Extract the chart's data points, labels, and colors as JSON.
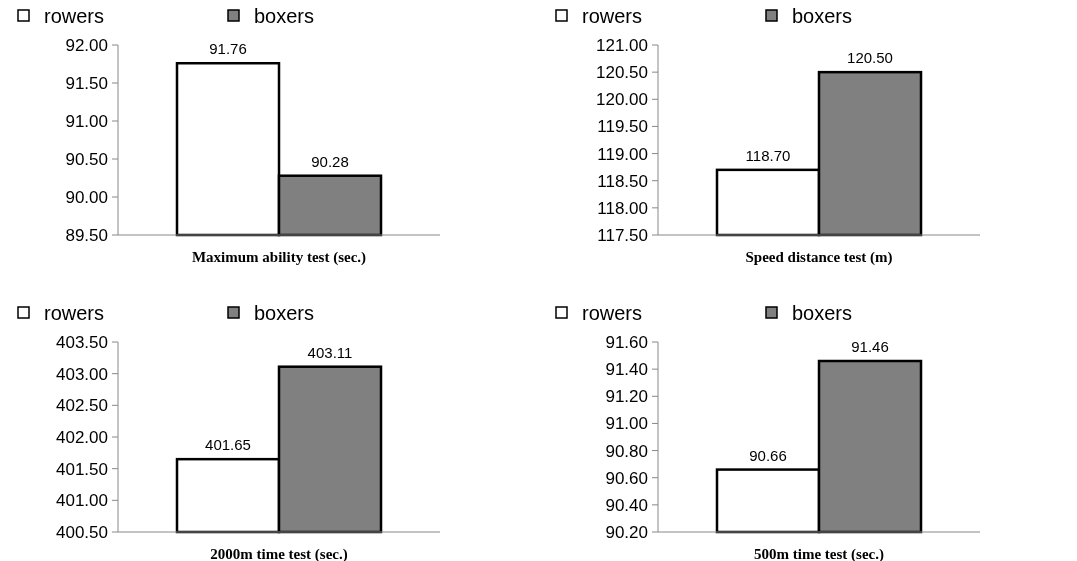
{
  "chart_data": [
    {
      "type": "bar",
      "xlabel": "Maximum ability test (sec.)",
      "categories": [
        null
      ],
      "legend": "top left",
      "grid": false,
      "ylim": [
        89.5,
        92
      ],
      "yticks": [
        {
          "value": 89.5,
          "label": "89.50"
        },
        {
          "value": 90,
          "label": "90.00"
        },
        {
          "value": 90.5,
          "label": "90.50"
        },
        {
          "value": 91,
          "label": "91.00"
        },
        {
          "value": 91.5,
          "label": "91.50"
        },
        {
          "value": 92,
          "label": "92.00"
        }
      ],
      "series": [
        {
          "name": "rowers",
          "color": "#ffffff",
          "values": [
            91.76
          ],
          "value_labels": [
            "91.76"
          ]
        },
        {
          "name": "boxers",
          "color": "#808080",
          "values": [
            90.28
          ],
          "value_labels": [
            "90.28"
          ]
        }
      ]
    },
    {
      "type": "bar",
      "xlabel": "Speed distance test (m)",
      "categories": [
        null
      ],
      "legend": "top left",
      "grid": false,
      "ylim": [
        117.5,
        121
      ],
      "yticks": [
        {
          "value": 117.5,
          "label": "117.50"
        },
        {
          "value": 118,
          "label": "118.00"
        },
        {
          "value": 118.5,
          "label": "118.50"
        },
        {
          "value": 119,
          "label": "119.00"
        },
        {
          "value": 119.5,
          "label": "119.50"
        },
        {
          "value": 120,
          "label": "120.00"
        },
        {
          "value": 120.5,
          "label": "120.50"
        },
        {
          "value": 121,
          "label": "121.00"
        }
      ],
      "series": [
        {
          "name": "rowers",
          "color": "#ffffff",
          "values": [
            118.7
          ],
          "value_labels": [
            "118.70"
          ]
        },
        {
          "name": "boxers",
          "color": "#808080",
          "values": [
            120.5
          ],
          "value_labels": [
            "120.50"
          ]
        }
      ]
    },
    {
      "type": "bar",
      "xlabel": "2000m time test (sec.)",
      "categories": [
        null
      ],
      "legend": "top left",
      "grid": false,
      "ylim": [
        400.5,
        403.5
      ],
      "yticks": [
        {
          "value": 400.5,
          "label": "400.50"
        },
        {
          "value": 401,
          "label": "401.00"
        },
        {
          "value": 401.5,
          "label": "401.50"
        },
        {
          "value": 402,
          "label": "402.00"
        },
        {
          "value": 402.5,
          "label": "402.50"
        },
        {
          "value": 403,
          "label": "403.00"
        },
        {
          "value": 403.5,
          "label": "403.50"
        }
      ],
      "series": [
        {
          "name": "rowers",
          "color": "#ffffff",
          "values": [
            401.65
          ],
          "value_labels": [
            "401.65"
          ]
        },
        {
          "name": "boxers",
          "color": "#808080",
          "values": [
            403.11
          ],
          "value_labels": [
            "403.11"
          ]
        }
      ]
    },
    {
      "type": "bar",
      "xlabel": "500m time test (sec.)",
      "categories": [
        null
      ],
      "legend": "top left",
      "grid": false,
      "ylim": [
        90.2,
        91.6
      ],
      "yticks": [
        {
          "value": 90.2,
          "label": "90.20"
        },
        {
          "value": 90.4,
          "label": "90.40"
        },
        {
          "value": 90.6,
          "label": "90.60"
        },
        {
          "value": 90.8,
          "label": "90.80"
        },
        {
          "value": 91,
          "label": "91.00"
        },
        {
          "value": 91.2,
          "label": "91.20"
        },
        {
          "value": 91.4,
          "label": "91.40"
        },
        {
          "value": 91.6,
          "label": "91.60"
        }
      ],
      "series": [
        {
          "name": "rowers",
          "color": "#ffffff",
          "values": [
            90.66
          ],
          "value_labels": [
            "90.66"
          ]
        },
        {
          "name": "boxers",
          "color": "#808080",
          "values": [
            91.46
          ],
          "value_labels": [
            "91.46"
          ]
        }
      ]
    }
  ]
}
